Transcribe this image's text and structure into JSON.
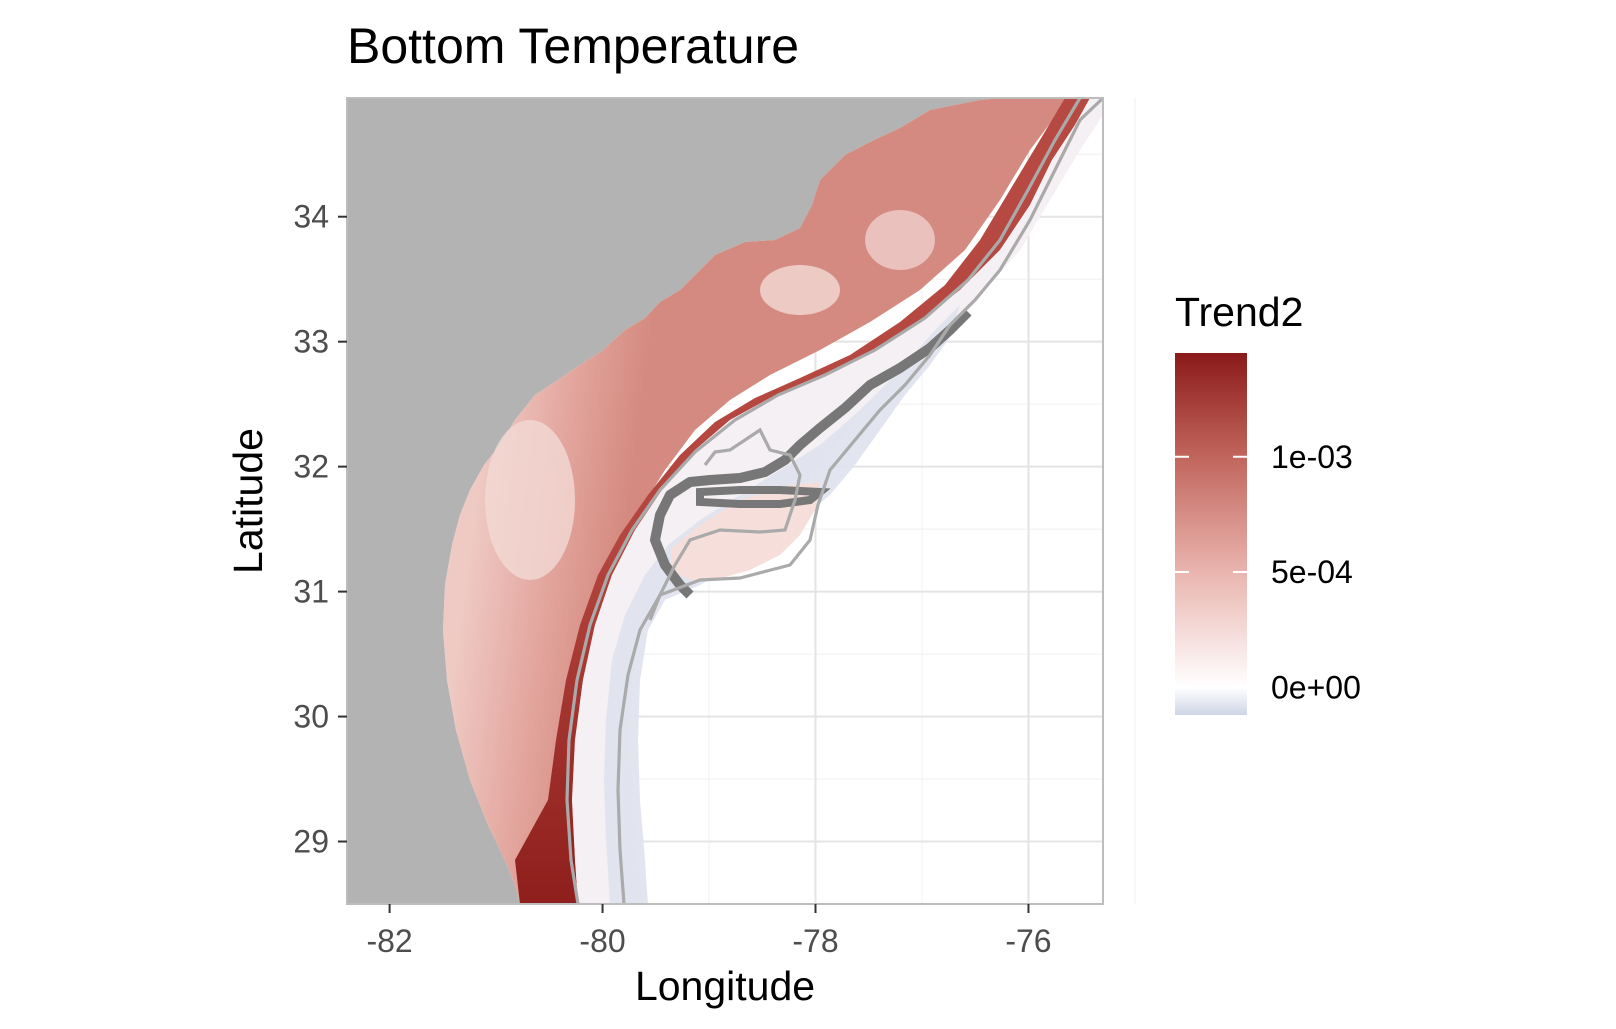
{
  "title": "Bottom Temperature",
  "chart_data": {
    "type": "heatmap",
    "title": "Bottom Temperature",
    "xlabel": "Longitude",
    "ylabel": "Latitude",
    "xlim": [
      -82.4,
      -75.3
    ],
    "ylim": [
      28.5,
      34.95
    ],
    "x_ticks": [
      -82,
      -80,
      -78,
      -76
    ],
    "x_tick_labels": [
      "-82",
      "-80",
      "-78",
      "-76"
    ],
    "y_ticks": [
      29,
      30,
      31,
      32,
      33,
      34
    ],
    "y_tick_labels": [
      "29",
      "30",
      "31",
      "32",
      "33",
      "34"
    ],
    "grid": true,
    "land_color": "#b3b3b3",
    "contour_color": "#aaaaaa",
    "legend": {
      "title": "Trend2",
      "position": "right",
      "breaks": [
        0,
        0.0005,
        0.001
      ],
      "labels": [
        "0e+00",
        "5e-04",
        "1e-03"
      ],
      "range": [
        -0.00012,
        0.00145
      ],
      "colors": {
        "low": "#cfd5e6",
        "mid": "#ffffff",
        "high": "#8b1a1a"
      }
    }
  }
}
